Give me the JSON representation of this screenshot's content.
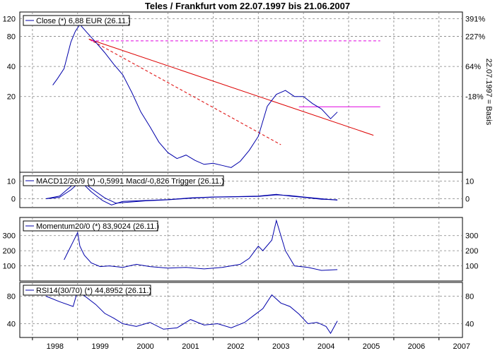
{
  "title": "Teles / Frankfurt vom 22.07.1997  bis 21.06.2007",
  "side_label": "22.07.1997 = Basis",
  "x_ticks": [
    "1998",
    "1999",
    "2000",
    "2001",
    "2002",
    "2003",
    "2004",
    "2005",
    "2006",
    "2007"
  ],
  "colors": {
    "series": "#0000aa",
    "trend": "#dd0000",
    "magenta": "#e000e0",
    "grid": "#808080"
  },
  "chart_data": [
    {
      "type": "line",
      "panel": "close",
      "legend": "Close (*) 6,88 EUR (26.11.)",
      "y_scale": "log",
      "ylim": [
        3.5,
        140
      ],
      "y_ticks_left": [
        "120",
        "80",
        "40",
        "20"
      ],
      "y_ticks_right": [
        "391%",
        "227%",
        "64%",
        "-18%"
      ],
      "x": [
        1998.45,
        1998.55,
        1998.7,
        1998.85,
        1998.95,
        1999.05,
        1999.2,
        1999.4,
        1999.6,
        1999.8,
        2000.0,
        2000.2,
        2000.4,
        2000.6,
        2000.8,
        2001.0,
        2001.2,
        2001.4,
        2001.6,
        2001.8,
        2002.0,
        2002.2,
        2002.4,
        2002.6,
        2002.8,
        2003.0,
        2003.2,
        2003.4,
        2003.6,
        2003.8,
        2004.0,
        2004.2,
        2004.4,
        2004.6,
        2004.75
      ],
      "values": [
        26,
        30,
        38,
        70,
        90,
        105,
        88,
        70,
        55,
        42,
        33,
        22,
        14,
        10,
        7,
        5.5,
        4.8,
        5.2,
        4.6,
        4.2,
        4.3,
        4.1,
        3.9,
        4.5,
        5.8,
        8,
        16,
        21,
        23,
        20,
        20,
        17,
        15,
        12,
        14
      ],
      "grid": true
    },
    {
      "type": "line",
      "panel": "macd",
      "legend": "MACD12/26/9 (*) -0,5991 Macd/-0,826 Trigger (26.11.)",
      "ylim": [
        -5,
        15
      ],
      "y_ticks": [
        "10",
        "0"
      ],
      "series": [
        {
          "x": [
            1998.3,
            1998.6,
            1998.85,
            1999.0,
            1999.1,
            1999.3,
            1999.55,
            1999.75,
            2000.0,
            2000.5,
            2001.0,
            2001.5,
            2002.0,
            2002.5,
            2003.0,
            2003.4,
            2003.7,
            2004.0,
            2004.4,
            2004.75
          ],
          "values": [
            0,
            1.5,
            7,
            10.5,
            9,
            4,
            -1,
            -3.5,
            -1.5,
            -1,
            -0.5,
            0.5,
            1,
            1.2,
            1.5,
            2.5,
            1.5,
            0.8,
            -0.3,
            -0.6
          ]
        },
        {
          "x": [
            1998.3,
            1998.6,
            1998.85,
            1999.0,
            1999.15,
            1999.35,
            1999.6,
            1999.85,
            2000.1,
            2000.5,
            2001.0,
            2001.5,
            2002.0,
            2002.5,
            2003.0,
            2003.4,
            2003.7,
            2004.0,
            2004.4,
            2004.75
          ],
          "values": [
            0,
            0.8,
            5,
            8.5,
            8.8,
            5,
            0.5,
            -2.5,
            -2,
            -1.2,
            -0.6,
            0.3,
            0.9,
            1.1,
            1.3,
            2.2,
            1.8,
            1,
            0,
            -0.8
          ]
        }
      ]
    },
    {
      "type": "line",
      "panel": "momentum",
      "legend": "Momentum20/0 (*) 83,9024 (26.11.)",
      "ylim": [
        0,
        420
      ],
      "y_ticks": [
        "300",
        "200",
        "100"
      ],
      "x": [
        1998.7,
        1998.8,
        1998.9,
        1999.0,
        1999.05,
        1999.15,
        1999.3,
        1999.5,
        1999.7,
        2000.0,
        2000.3,
        2000.6,
        2001.0,
        2001.4,
        2001.8,
        2002.2,
        2002.6,
        2002.8,
        2003.0,
        2003.1,
        2003.3,
        2003.4,
        2003.6,
        2003.8,
        2004.1,
        2004.4,
        2004.75
      ],
      "values": [
        140,
        200,
        260,
        320,
        230,
        170,
        120,
        95,
        100,
        90,
        110,
        95,
        85,
        90,
        80,
        90,
        110,
        150,
        230,
        200,
        270,
        400,
        200,
        100,
        90,
        70,
        75
      ],
      "grid": true
    },
    {
      "type": "line",
      "panel": "rsi",
      "legend": "RSI14(30/70) (*) 44,8952 (26.11.)",
      "ylim": [
        20,
        100
      ],
      "y_ticks": [
        "80",
        "40"
      ],
      "x": [
        1998.3,
        1998.6,
        1998.9,
        1999.0,
        1999.2,
        1999.4,
        1999.6,
        1999.8,
        2000.0,
        2000.3,
        2000.6,
        2000.9,
        2001.2,
        2001.5,
        2001.8,
        2002.1,
        2002.4,
        2002.7,
        2002.9,
        2003.1,
        2003.3,
        2003.5,
        2003.7,
        2003.9,
        2004.1,
        2004.3,
        2004.5,
        2004.6,
        2004.75
      ],
      "values": [
        80,
        72,
        65,
        88,
        78,
        68,
        55,
        48,
        40,
        36,
        42,
        32,
        34,
        46,
        38,
        40,
        34,
        42,
        52,
        62,
        82,
        70,
        65,
        54,
        40,
        42,
        36,
        26,
        44
      ],
      "grid": true
    }
  ]
}
